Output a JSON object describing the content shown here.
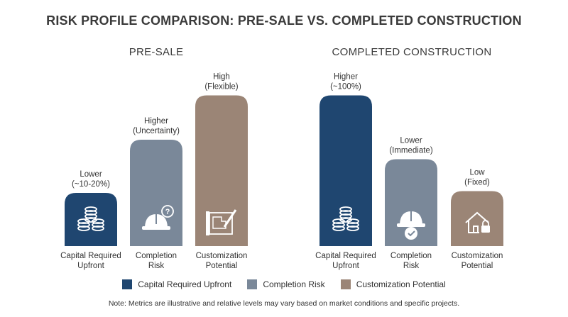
{
  "title": "RISK PROFILE COMPARISON: PRE-SALE VS. COMPLETED CONSTRUCTION",
  "colors": {
    "capital": "#1f4670",
    "completion": "#7a8899",
    "customization": "#9b8576",
    "text": "#333333"
  },
  "chart_data": [
    {
      "type": "bar",
      "title": "PRE-SALE",
      "categories": [
        "Capital Required Upfront",
        "Completion Risk",
        "Customization Potential"
      ],
      "values": [
        30,
        60,
        85
      ],
      "value_labels": [
        "Lower (~10-20%)",
        "Higher (Uncertainty)",
        "High (Flexible)"
      ],
      "icons": [
        "coins-stack-icon",
        "hardhat-question-icon",
        "blueprint-pencil-icon"
      ],
      "ylim": [
        0,
        100
      ],
      "grid": false
    },
    {
      "type": "bar",
      "title": "COMPLETED CONSTRUCTION",
      "categories": [
        "Capital Required Upfront",
        "Completion Risk",
        "Customization Potential"
      ],
      "values": [
        85,
        49,
        31
      ],
      "value_labels": [
        "Higher (~100%)",
        "Lower (Immediate)",
        "Low (Fixed)"
      ],
      "icons": [
        "coins-stack-icon",
        "hardhat-check-icon",
        "house-lock-icon"
      ],
      "ylim": [
        0,
        100
      ],
      "grid": false
    }
  ],
  "legend": {
    "position": "bottom",
    "items": [
      "Capital Required Upfront",
      "Completion Risk",
      "Customization Potential"
    ]
  },
  "note": "Note: Metrics are illustrative and relative levels may vary based on market conditions and specific projects."
}
